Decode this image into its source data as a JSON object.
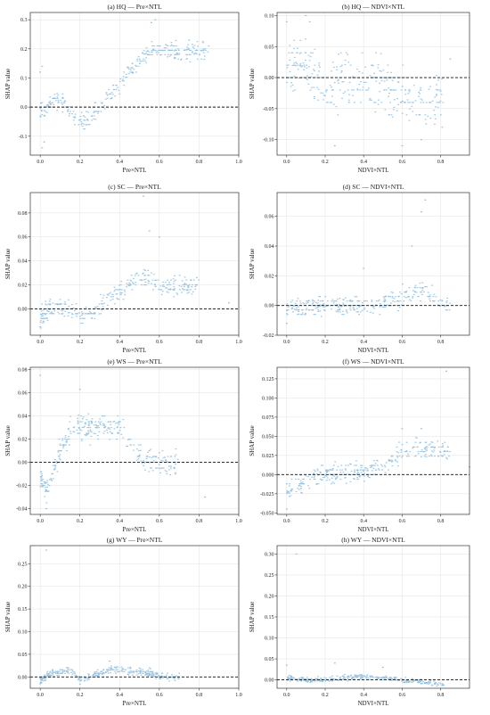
{
  "style": {
    "point_color": "#8fbfe0",
    "zero_line_color": "#111111",
    "grid_color": "#e6e6e6",
    "frame_color": "#333333"
  },
  "chart_data": [
    {
      "type": "scatter",
      "title": "(a) HQ — Pre×NTL",
      "xlabel": "Pre×NTL",
      "ylabel": "SHAP value",
      "xlim": [
        -0.05,
        1.0
      ],
      "ylim": [
        -0.165,
        0.325
      ],
      "xticks": [
        0.0,
        0.2,
        0.4,
        0.6,
        0.8,
        1.0
      ],
      "xtick_labels": [
        "0.0",
        "0.2",
        "0.4",
        "0.6",
        "0.8",
        "1.0"
      ],
      "yticks": [
        -0.1,
        0.0,
        0.1,
        0.2,
        0.3
      ],
      "ytick_labels": [
        "-0.1",
        "0.0",
        "0.1",
        "0.2",
        "0.3"
      ],
      "grid": true,
      "reference_line_y": 0,
      "trend": [
        [
          0.0,
          0.0
        ],
        [
          0.02,
          -0.02
        ],
        [
          0.05,
          0.02
        ],
        [
          0.1,
          0.03
        ],
        [
          0.15,
          -0.02
        ],
        [
          0.2,
          -0.06
        ],
        [
          0.25,
          -0.04
        ],
        [
          0.3,
          0.0
        ],
        [
          0.35,
          0.05
        ],
        [
          0.4,
          0.08
        ],
        [
          0.45,
          0.12
        ],
        [
          0.5,
          0.16
        ],
        [
          0.55,
          0.2
        ],
        [
          0.6,
          0.2
        ],
        [
          0.7,
          0.19
        ],
        [
          0.8,
          0.19
        ]
      ],
      "spread": 0.03,
      "xmax": 0.85,
      "extremes": [
        [
          0.01,
          0.14
        ],
        [
          0.01,
          -0.14
        ],
        [
          0.0,
          0.12
        ],
        [
          0.02,
          -0.12
        ],
        [
          0.56,
          0.29
        ],
        [
          0.58,
          0.3
        ],
        [
          0.75,
          0.23
        ],
        [
          0.83,
          0.2
        ]
      ]
    },
    {
      "type": "scatter",
      "title": "(b) HQ — NDVI×NTL",
      "xlabel": "NDVI×NTL",
      "ylabel": "SHAP value",
      "xlim": [
        -0.05,
        0.95
      ],
      "ylim": [
        -0.125,
        0.105
      ],
      "xticks": [
        0.0,
        0.2,
        0.4,
        0.6,
        0.8
      ],
      "xtick_labels": [
        "0.0",
        "0.2",
        "0.4",
        "0.6",
        "0.8"
      ],
      "yticks": [
        -0.1,
        -0.05,
        0.0,
        0.05,
        0.1
      ],
      "ytick_labels": [
        "-0.10",
        "-0.05",
        "0.00",
        "0.05",
        "0.10"
      ],
      "grid": true,
      "reference_line_y": 0,
      "trend": [
        [
          0.0,
          0.01
        ],
        [
          0.1,
          0.02
        ],
        [
          0.15,
          0.0
        ],
        [
          0.2,
          -0.02
        ],
        [
          0.3,
          0.0
        ],
        [
          0.4,
          -0.01
        ],
        [
          0.5,
          -0.01
        ],
        [
          0.6,
          -0.03
        ],
        [
          0.7,
          -0.04
        ],
        [
          0.8,
          -0.04
        ]
      ],
      "spread": 0.04,
      "xmax": 0.82,
      "extremes": [
        [
          0.1,
          0.1
        ],
        [
          0.12,
          0.09
        ],
        [
          0.0,
          0.09
        ],
        [
          0.25,
          -0.11
        ],
        [
          0.6,
          -0.11
        ],
        [
          0.7,
          -0.1
        ],
        [
          0.85,
          0.03
        ]
      ]
    },
    {
      "type": "scatter",
      "title": "(c) SC — Pre×NTL",
      "xlabel": "Pre×NTL",
      "ylabel": "SHAP value",
      "xlim": [
        -0.05,
        1.0
      ],
      "ylim": [
        -0.022,
        0.097
      ],
      "xticks": [
        0.0,
        0.2,
        0.4,
        0.6,
        0.8,
        1.0
      ],
      "xtick_labels": [
        "0.0",
        "0.2",
        "0.4",
        "0.6",
        "0.8",
        "1.0"
      ],
      "yticks": [
        0.0,
        0.02,
        0.04,
        0.06,
        0.08
      ],
      "ytick_labels": [
        "0.00",
        "0.02",
        "0.04",
        "0.06",
        "0.08"
      ],
      "grid": true,
      "reference_line_y": 0,
      "trend": [
        [
          0.0,
          -0.005
        ],
        [
          0.05,
          0.0
        ],
        [
          0.1,
          0.003
        ],
        [
          0.15,
          0.0
        ],
        [
          0.2,
          -0.005
        ],
        [
          0.25,
          -0.006
        ],
        [
          0.3,
          0.0
        ],
        [
          0.35,
          0.01
        ],
        [
          0.4,
          0.015
        ],
        [
          0.45,
          0.02
        ],
        [
          0.5,
          0.025
        ],
        [
          0.55,
          0.025
        ],
        [
          0.6,
          0.02
        ],
        [
          0.7,
          0.02
        ]
      ],
      "spread": 0.008,
      "xmax": 0.8,
      "extremes": [
        [
          0.52,
          0.094
        ],
        [
          0.55,
          0.065
        ],
        [
          0.6,
          0.06
        ],
        [
          0.0,
          -0.015
        ],
        [
          0.95,
          0.005
        ]
      ]
    },
    {
      "type": "scatter",
      "title": "(d) SC — NDVI×NTL",
      "xlabel": "NDVI×NTL",
      "ylabel": "SHAP value",
      "xlim": [
        -0.05,
        0.95
      ],
      "ylim": [
        -0.02,
        0.076
      ],
      "xticks": [
        0.0,
        0.2,
        0.4,
        0.6,
        0.8
      ],
      "xtick_labels": [
        "0.0",
        "0.2",
        "0.4",
        "0.6",
        "0.8"
      ],
      "yticks": [
        -0.02,
        0.0,
        0.02,
        0.04,
        0.06
      ],
      "ytick_labels": [
        "-0.02",
        "0.00",
        "0.02",
        "0.04",
        "0.06"
      ],
      "grid": true,
      "reference_line_y": 0,
      "trend": [
        [
          0.0,
          -0.003
        ],
        [
          0.1,
          0.0
        ],
        [
          0.2,
          0.0
        ],
        [
          0.3,
          0.0
        ],
        [
          0.4,
          0.0
        ],
        [
          0.5,
          0.002
        ],
        [
          0.6,
          0.005
        ],
        [
          0.7,
          0.01
        ],
        [
          0.8,
          0.0
        ]
      ],
      "spread": 0.006,
      "xmax": 0.85,
      "extremes": [
        [
          0.0,
          -0.012
        ],
        [
          0.7,
          0.063
        ],
        [
          0.72,
          0.071
        ],
        [
          0.65,
          0.04
        ],
        [
          0.4,
          0.025
        ]
      ]
    },
    {
      "type": "scatter",
      "title": "(e) WS — Pre×NTL",
      "xlabel": "Pre×NTL",
      "ylabel": "SHAP value",
      "xlim": [
        -0.05,
        1.0
      ],
      "ylim": [
        -0.045,
        0.082
      ],
      "xticks": [
        0.0,
        0.2,
        0.4,
        0.6,
        0.8,
        1.0
      ],
      "xtick_labels": [
        "0.0",
        "0.2",
        "0.4",
        "0.6",
        "0.8",
        "1.0"
      ],
      "yticks": [
        -0.04,
        -0.02,
        0.0,
        0.02,
        0.04,
        0.06,
        0.08
      ],
      "ytick_labels": [
        "-0.04",
        "-0.02",
        "0.00",
        "0.02",
        "0.04",
        "0.06",
        "0.08"
      ],
      "grid": true,
      "reference_line_y": 0,
      "trend": [
        [
          0.0,
          -0.01
        ],
        [
          0.03,
          -0.025
        ],
        [
          0.05,
          -0.02
        ],
        [
          0.08,
          0.0
        ],
        [
          0.1,
          0.01
        ],
        [
          0.15,
          0.025
        ],
        [
          0.2,
          0.032
        ],
        [
          0.3,
          0.03
        ],
        [
          0.4,
          0.03
        ],
        [
          0.45,
          0.02
        ],
        [
          0.5,
          0.005
        ],
        [
          0.6,
          0.0
        ],
        [
          0.65,
          0.0
        ]
      ],
      "spread": 0.01,
      "xmax": 0.7,
      "extremes": [
        [
          0.0,
          0.075
        ],
        [
          0.03,
          -0.04
        ],
        [
          0.2,
          0.063
        ],
        [
          0.83,
          -0.03
        ],
        [
          0.55,
          0.01
        ]
      ]
    },
    {
      "type": "scatter",
      "title": "(f) WS — NDVI×NTL",
      "xlabel": "NDVI×NTL",
      "ylabel": "SHAP value",
      "xlim": [
        -0.05,
        0.95
      ],
      "ylim": [
        -0.052,
        0.14
      ],
      "xticks": [
        0.0,
        0.2,
        0.4,
        0.6,
        0.8
      ],
      "xtick_labels": [
        "0.0",
        "0.2",
        "0.4",
        "0.6",
        "0.8"
      ],
      "yticks": [
        -0.05,
        -0.025,
        0.0,
        0.025,
        0.05,
        0.075,
        0.1,
        0.125
      ],
      "ytick_labels": [
        "-0.050",
        "-0.025",
        "0.000",
        "0.025",
        "0.050",
        "0.075",
        "0.100",
        "0.125"
      ],
      "grid": true,
      "reference_line_y": 0,
      "trend": [
        [
          0.0,
          -0.02
        ],
        [
          0.1,
          -0.01
        ],
        [
          0.15,
          0.0
        ],
        [
          0.2,
          0.0
        ],
        [
          0.3,
          0.003
        ],
        [
          0.4,
          0.005
        ],
        [
          0.5,
          0.01
        ],
        [
          0.55,
          0.02
        ],
        [
          0.6,
          0.03
        ],
        [
          0.7,
          0.035
        ],
        [
          0.8,
          0.03
        ]
      ],
      "spread": 0.012,
      "xmax": 0.85,
      "extremes": [
        [
          0.0,
          -0.045
        ],
        [
          0.83,
          0.135
        ],
        [
          0.6,
          0.06
        ],
        [
          0.7,
          0.06
        ],
        [
          0.95,
          0.01
        ]
      ]
    },
    {
      "type": "scatter",
      "title": "(g) WY — Pre×NTL",
      "xlabel": "Pre×NTL",
      "ylabel": "SHAP value",
      "xlim": [
        -0.05,
        1.0
      ],
      "ylim": [
        -0.025,
        0.29
      ],
      "xticks": [
        0.0,
        0.2,
        0.4,
        0.6,
        0.8,
        1.0
      ],
      "xtick_labels": [
        "0.0",
        "0.2",
        "0.4",
        "0.6",
        "0.8",
        "1.0"
      ],
      "yticks": [
        0.0,
        0.05,
        0.1,
        0.15,
        0.2,
        0.25
      ],
      "ytick_labels": [
        "0.00",
        "0.05",
        "0.10",
        "0.15",
        "0.20",
        "0.25"
      ],
      "grid": true,
      "reference_line_y": 0,
      "trend": [
        [
          0.0,
          -0.005
        ],
        [
          0.05,
          0.005
        ],
        [
          0.1,
          0.01
        ],
        [
          0.15,
          0.015
        ],
        [
          0.2,
          -0.005
        ],
        [
          0.25,
          0.0
        ],
        [
          0.3,
          0.01
        ],
        [
          0.35,
          0.015
        ],
        [
          0.4,
          0.015
        ],
        [
          0.5,
          0.012
        ],
        [
          0.55,
          0.008
        ],
        [
          0.6,
          0.0
        ],
        [
          0.7,
          0.0
        ]
      ],
      "spread": 0.008,
      "xmax": 0.7,
      "extremes": [
        [
          0.03,
          0.28
        ],
        [
          0.0,
          -0.015
        ],
        [
          0.9,
          0.0
        ],
        [
          0.35,
          0.035
        ]
      ]
    },
    {
      "type": "scatter",
      "title": "(h) WY — NDVI×NTL",
      "xlabel": "NDVI×NTL",
      "ylabel": "SHAP value",
      "xlim": [
        -0.05,
        0.95
      ],
      "ylim": [
        -0.02,
        0.32
      ],
      "xticks": [
        0.0,
        0.2,
        0.4,
        0.6,
        0.8
      ],
      "xtick_labels": [
        "0.0",
        "0.2",
        "0.4",
        "0.6",
        "0.8"
      ],
      "yticks": [
        0.0,
        0.05,
        0.1,
        0.15,
        0.2,
        0.25,
        0.3
      ],
      "ytick_labels": [
        "0.00",
        "0.05",
        "0.10",
        "0.15",
        "0.20",
        "0.25",
        "0.30"
      ],
      "grid": true,
      "reference_line_y": 0,
      "trend": [
        [
          0.0,
          0.005
        ],
        [
          0.1,
          0.0
        ],
        [
          0.2,
          0.0
        ],
        [
          0.3,
          0.005
        ],
        [
          0.4,
          0.008
        ],
        [
          0.5,
          0.005
        ],
        [
          0.6,
          0.0
        ],
        [
          0.7,
          -0.005
        ],
        [
          0.8,
          -0.01
        ]
      ],
      "spread": 0.006,
      "xmax": 0.82,
      "extremes": [
        [
          0.05,
          0.3
        ],
        [
          0.0,
          0.035
        ],
        [
          0.25,
          0.04
        ],
        [
          0.5,
          0.03
        ]
      ]
    }
  ]
}
